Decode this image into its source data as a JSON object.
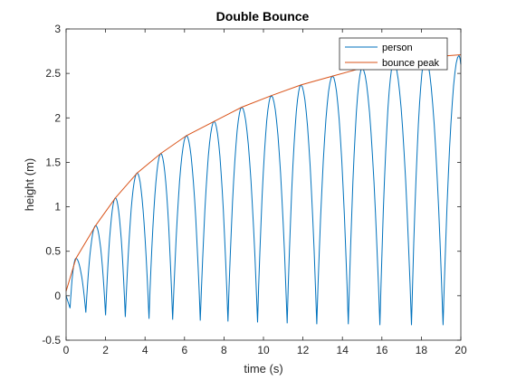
{
  "chart_data": {
    "type": "line",
    "title": "Double Bounce",
    "xlabel": "time (s)",
    "ylabel": "height (m)",
    "xlim": [
      0,
      20
    ],
    "ylim": [
      -0.5,
      3
    ],
    "x_ticks": [
      0,
      2,
      4,
      6,
      8,
      10,
      12,
      14,
      16,
      18,
      20
    ],
    "y_ticks": [
      -0.5,
      0,
      0.5,
      1,
      1.5,
      2,
      2.5,
      3
    ],
    "grid": false,
    "legend_position": "top-right",
    "series": [
      {
        "name": "person",
        "color": "#0072BD",
        "bounce_peaks": [
          {
            "t": 0.5,
            "h": 0.42
          },
          {
            "t": 1.5,
            "h": 0.79
          },
          {
            "t": 2.5,
            "h": 1.1
          },
          {
            "t": 3.6,
            "h": 1.38
          },
          {
            "t": 4.8,
            "h": 1.6
          },
          {
            "t": 6.1,
            "h": 1.8
          },
          {
            "t": 7.5,
            "h": 1.96
          },
          {
            "t": 8.9,
            "h": 2.12
          },
          {
            "t": 10.4,
            "h": 2.25
          },
          {
            "t": 11.9,
            "h": 2.37
          },
          {
            "t": 13.5,
            "h": 2.47
          },
          {
            "t": 15.0,
            "h": 2.56
          },
          {
            "t": 16.6,
            "h": 2.62
          },
          {
            "t": 18.2,
            "h": 2.68
          },
          {
            "t": 19.9,
            "h": 2.7
          }
        ],
        "bounce_troughs": [
          {
            "t": 0.2,
            "h": -0.14
          },
          {
            "t": 1.0,
            "h": -0.19
          },
          {
            "t": 2.0,
            "h": -0.22
          },
          {
            "t": 3.0,
            "h": -0.24
          },
          {
            "t": 4.2,
            "h": -0.26
          },
          {
            "t": 5.4,
            "h": -0.27
          },
          {
            "t": 6.8,
            "h": -0.28
          },
          {
            "t": 8.2,
            "h": -0.29
          },
          {
            "t": 9.7,
            "h": -0.3
          },
          {
            "t": 11.2,
            "h": -0.31
          },
          {
            "t": 12.7,
            "h": -0.32
          },
          {
            "t": 14.3,
            "h": -0.32
          },
          {
            "t": 15.9,
            "h": -0.33
          },
          {
            "t": 17.5,
            "h": -0.33
          },
          {
            "t": 19.1,
            "h": -0.33
          }
        ],
        "start": {
          "t": 0.0,
          "h": 0.0
        },
        "end": {
          "t": 20.0,
          "h": 2.6
        }
      },
      {
        "name": "bounce peak",
        "color": "#D95319",
        "x": [
          0,
          0.5,
          1.5,
          2.5,
          3.6,
          4.8,
          6.1,
          7.5,
          8.9,
          10.4,
          11.9,
          13.5,
          15.0,
          16.6,
          18.2,
          20.0
        ],
        "y": [
          0.05,
          0.42,
          0.79,
          1.1,
          1.38,
          1.6,
          1.8,
          1.96,
          2.12,
          2.25,
          2.37,
          2.47,
          2.56,
          2.62,
          2.68,
          2.71
        ]
      }
    ]
  }
}
